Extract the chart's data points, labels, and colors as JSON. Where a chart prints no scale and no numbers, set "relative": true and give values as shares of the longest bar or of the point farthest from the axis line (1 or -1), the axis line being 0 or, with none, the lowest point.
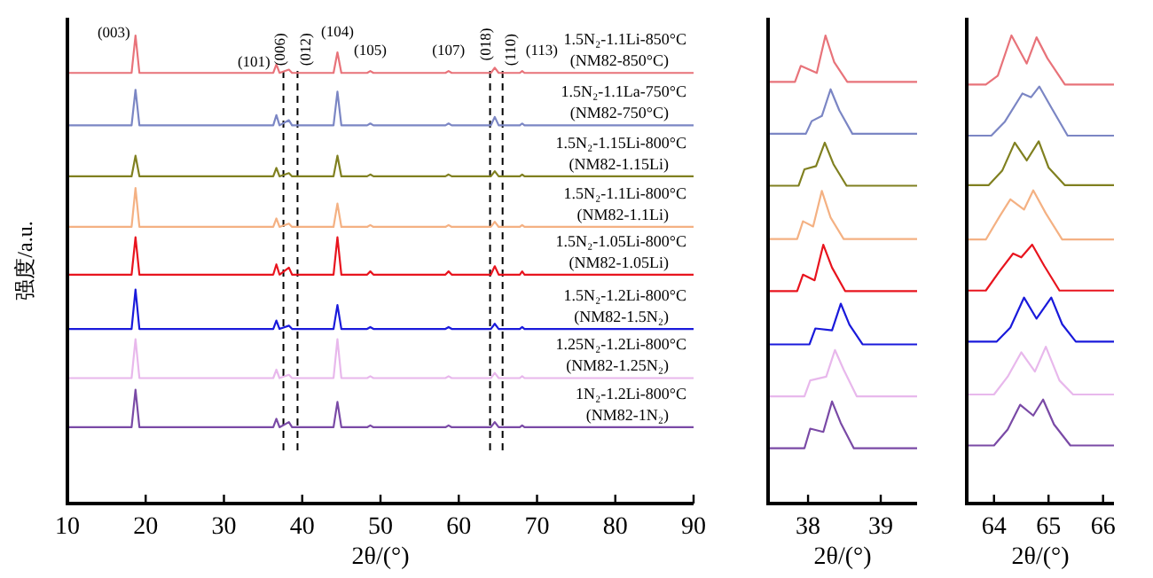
{
  "chart_data": [
    {
      "type": "line",
      "relative": true,
      "xlabel": "2θ/(°)",
      "ylabel": "强度/a.u.",
      "xlim": [
        10,
        90
      ],
      "xticks": [
        10,
        20,
        30,
        40,
        50,
        60,
        70,
        80,
        90
      ],
      "x": [
        10,
        18.2,
        18.7,
        19.2,
        36.3,
        36.7,
        37.1,
        38.3,
        38.7,
        44.0,
        44.5,
        45.0,
        48.3,
        48.7,
        49.1,
        58.3,
        58.7,
        59.1,
        64.1,
        64.6,
        65.1,
        67.8,
        68.1,
        68.4,
        90
      ],
      "series": [
        {
          "name": "1.5N₂-1.1Li-850°C (NM82-850°C)",
          "color": "#e8737a",
          "values": [
            0.92,
            0.92,
            1.0,
            0.92,
            0.92,
            0.938,
            0.92,
            0.927,
            0.92,
            0.92,
            0.964,
            0.92,
            0.92,
            0.924,
            0.92,
            0.92,
            0.924,
            0.92,
            0.92,
            0.931,
            0.92,
            0.92,
            0.924,
            0.92,
            0.92
          ]
        },
        {
          "name": "1.5N₂-1.1La-750°C (NM82-750°C)",
          "color": "#7b86c4",
          "values": [
            0.808,
            0.808,
            0.884,
            0.808,
            0.808,
            0.83,
            0.808,
            0.819,
            0.808,
            0.808,
            0.88,
            0.808,
            0.808,
            0.812,
            0.808,
            0.808,
            0.812,
            0.808,
            0.808,
            0.826,
            0.808,
            0.808,
            0.812,
            0.808,
            0.808
          ]
        },
        {
          "name": "1.5N₂-1.15Li-800°C (NM82-1.15Li)",
          "color": "#808020",
          "values": [
            0.699,
            0.699,
            0.743,
            0.699,
            0.699,
            0.717,
            0.699,
            0.706,
            0.699,
            0.699,
            0.743,
            0.699,
            0.699,
            0.703,
            0.699,
            0.699,
            0.703,
            0.699,
            0.699,
            0.71,
            0.699,
            0.699,
            0.703,
            0.699,
            0.699
          ]
        },
        {
          "name": "1.5N₂-1.1Li-800°C (NM82-1.1Li)",
          "color": "#f4b183",
          "values": [
            0.591,
            0.591,
            0.674,
            0.591,
            0.591,
            0.609,
            0.591,
            0.598,
            0.591,
            0.591,
            0.641,
            0.591,
            0.591,
            0.595,
            0.591,
            0.591,
            0.595,
            0.591,
            0.591,
            0.602,
            0.591,
            0.591,
            0.595,
            0.591,
            0.591
          ]
        },
        {
          "name": "1.5N₂-1.05Li-800°C (NM82-1.05Li)",
          "color": "#e8141e",
          "values": [
            0.489,
            0.489,
            0.569,
            0.489,
            0.489,
            0.511,
            0.489,
            0.504,
            0.489,
            0.489,
            0.569,
            0.489,
            0.489,
            0.496,
            0.489,
            0.489,
            0.496,
            0.489,
            0.489,
            0.507,
            0.489,
            0.489,
            0.496,
            0.489,
            0.489
          ]
        },
        {
          "name": "1.5N₂-1.2Li-800°C (NM82-1.5N₂)",
          "color": "#1a1adb",
          "values": [
            0.373,
            0.373,
            0.457,
            0.373,
            0.373,
            0.391,
            0.373,
            0.38,
            0.373,
            0.373,
            0.424,
            0.373,
            0.373,
            0.377,
            0.373,
            0.373,
            0.377,
            0.373,
            0.373,
            0.384,
            0.373,
            0.373,
            0.377,
            0.373,
            0.373
          ]
        },
        {
          "name": "1.25N₂-1.2Li-800°C (NM82-1.25N₂)",
          "color": "#e8b8ec",
          "values": [
            0.268,
            0.268,
            0.351,
            0.268,
            0.268,
            0.286,
            0.268,
            0.275,
            0.268,
            0.268,
            0.351,
            0.268,
            0.268,
            0.272,
            0.268,
            0.268,
            0.272,
            0.268,
            0.268,
            0.279,
            0.268,
            0.268,
            0.272,
            0.268,
            0.268
          ]
        },
        {
          "name": "1N₂-1.2Li-800°C (NM82-1N₂)",
          "color": "#7a4aa6",
          "values": [
            0.163,
            0.163,
            0.243,
            0.163,
            0.163,
            0.181,
            0.163,
            0.174,
            0.163,
            0.163,
            0.217,
            0.163,
            0.163,
            0.167,
            0.163,
            0.163,
            0.167,
            0.163,
            0.163,
            0.174,
            0.163,
            0.163,
            0.167,
            0.163,
            0.163
          ]
        }
      ],
      "annotations": [
        {
          "text": "(003)",
          "x": 18.7,
          "y": 1.0
        },
        {
          "text": "(101)",
          "x": 36.6,
          "y": 0.938
        },
        {
          "text": "(006)",
          "x": 38.0,
          "y": 0.92
        },
        {
          "text": "(012)",
          "x": 39.2,
          "y": 0.92
        },
        {
          "text": "(104)",
          "x": 44.5,
          "y": 0.964
        },
        {
          "text": "(105)",
          "x": 48.7,
          "y": 0.924
        },
        {
          "text": "(107)",
          "x": 58.7,
          "y": 0.924
        },
        {
          "text": "(018)",
          "x": 64.3,
          "y": 0.931
        },
        {
          "text": "(110)",
          "x": 65.4,
          "y": 0.92
        },
        {
          "text": "(113)",
          "x": 68.1,
          "y": 0.924
        }
      ],
      "ref_lines": [
        {
          "axis": "x",
          "value": 37.6,
          "color": "#000000",
          "line_style": "dashed"
        },
        {
          "axis": "x",
          "value": 39.4,
          "color": "#000000",
          "line_style": "dashed"
        },
        {
          "axis": "x",
          "value": 64.0,
          "color": "#000000",
          "line_style": "dashed"
        },
        {
          "axis": "x",
          "value": 65.6,
          "color": "#000000",
          "line_style": "dashed"
        }
      ]
    },
    {
      "type": "line",
      "relative": true,
      "xlabel": "2θ/(°)",
      "xlim": [
        37.45,
        39.5
      ],
      "xticks": [
        38,
        39
      ],
      "series": [
        {
          "color": "#e8737a",
          "x": [
            37.45,
            37.82,
            37.9,
            38.12,
            38.24,
            38.36,
            38.54,
            39.5
          ],
          "values": [
            0.901,
            0.901,
            0.935,
            0.92,
            1.0,
            0.943,
            0.901,
            0.901
          ]
        },
        {
          "color": "#7b86c4",
          "x": [
            37.45,
            37.97,
            38.05,
            38.19,
            38.31,
            38.43,
            38.61,
            39.5
          ],
          "values": [
            0.79,
            0.79,
            0.817,
            0.828,
            0.885,
            0.84,
            0.79,
            0.79
          ]
        },
        {
          "color": "#808020",
          "x": [
            37.45,
            37.87,
            37.95,
            38.11,
            38.23,
            38.35,
            38.53,
            39.5
          ],
          "values": [
            0.679,
            0.679,
            0.714,
            0.721,
            0.771,
            0.725,
            0.679,
            0.679
          ]
        },
        {
          "color": "#f4b183",
          "x": [
            37.45,
            37.85,
            37.93,
            38.07,
            38.19,
            38.31,
            38.49,
            39.5
          ],
          "values": [
            0.565,
            0.565,
            0.603,
            0.592,
            0.668,
            0.611,
            0.565,
            0.565
          ]
        },
        {
          "color": "#e8141e",
          "x": [
            37.45,
            37.85,
            37.93,
            38.09,
            38.21,
            38.33,
            38.51,
            39.5
          ],
          "values": [
            0.454,
            0.454,
            0.489,
            0.477,
            0.553,
            0.504,
            0.454,
            0.454
          ]
        },
        {
          "color": "#1a1adb",
          "x": [
            37.45,
            38.02,
            38.1,
            38.33,
            38.45,
            38.57,
            38.75,
            39.5
          ],
          "values": [
            0.34,
            0.34,
            0.374,
            0.37,
            0.427,
            0.382,
            0.34,
            0.34
          ]
        },
        {
          "color": "#e8b8ec",
          "x": [
            37.45,
            37.95,
            38.03,
            38.25,
            38.37,
            38.49,
            38.67,
            39.5
          ],
          "values": [
            0.229,
            0.229,
            0.263,
            0.271,
            0.328,
            0.286,
            0.229,
            0.229
          ]
        },
        {
          "color": "#7a4aa6",
          "x": [
            37.45,
            37.95,
            38.03,
            38.21,
            38.33,
            38.45,
            38.63,
            39.5
          ],
          "values": [
            0.118,
            0.118,
            0.16,
            0.153,
            0.218,
            0.172,
            0.118,
            0.118
          ]
        }
      ]
    },
    {
      "type": "line",
      "relative": true,
      "xlabel": "2θ/(°)",
      "xlim": [
        63.5,
        66.2
      ],
      "xticks": [
        64,
        65,
        66
      ],
      "series": [
        {
          "color": "#e8737a",
          "x": [
            63.5,
            63.85,
            64.07,
            64.32,
            64.6,
            64.78,
            64.98,
            65.3,
            66.2
          ],
          "values": [
            0.895,
            0.895,
            0.914,
            1.0,
            0.94,
            0.996,
            0.951,
            0.895,
            0.895
          ]
        },
        {
          "color": "#7b86c4",
          "x": [
            63.5,
            63.95,
            64.2,
            64.52,
            64.68,
            64.83,
            65.05,
            65.35,
            66.2
          ],
          "values": [
            0.786,
            0.786,
            0.816,
            0.876,
            0.868,
            0.891,
            0.846,
            0.786,
            0.786
          ]
        },
        {
          "color": "#808020",
          "x": [
            63.5,
            63.9,
            64.15,
            64.38,
            64.6,
            64.82,
            65.0,
            65.3,
            66.2
          ],
          "values": [
            0.68,
            0.68,
            0.711,
            0.771,
            0.733,
            0.774,
            0.718,
            0.68,
            0.68
          ]
        },
        {
          "color": "#f4b183",
          "x": [
            63.5,
            63.85,
            64.1,
            64.3,
            64.55,
            64.72,
            64.95,
            65.25,
            66.2
          ],
          "values": [
            0.564,
            0.564,
            0.613,
            0.65,
            0.628,
            0.669,
            0.62,
            0.564,
            0.564
          ]
        },
        {
          "color": "#e8141e",
          "x": [
            63.5,
            63.85,
            64.1,
            64.35,
            64.5,
            64.7,
            64.92,
            65.2,
            66.2
          ],
          "values": [
            0.455,
            0.455,
            0.496,
            0.534,
            0.526,
            0.553,
            0.508,
            0.455,
            0.455
          ]
        },
        {
          "color": "#1a1adb",
          "x": [
            63.5,
            64.05,
            64.3,
            64.55,
            64.78,
            65.05,
            65.25,
            65.5,
            66.2
          ],
          "values": [
            0.346,
            0.346,
            0.376,
            0.44,
            0.395,
            0.44,
            0.383,
            0.346,
            0.346
          ]
        },
        {
          "color": "#e8b8ec",
          "x": [
            63.5,
            64.0,
            64.25,
            64.5,
            64.75,
            64.95,
            65.2,
            65.45,
            66.2
          ],
          "values": [
            0.233,
            0.233,
            0.271,
            0.323,
            0.282,
            0.335,
            0.263,
            0.233,
            0.233
          ]
        },
        {
          "color": "#7a4aa6",
          "x": [
            63.5,
            64.0,
            64.25,
            64.48,
            64.72,
            64.9,
            65.1,
            65.4,
            66.2
          ],
          "values": [
            0.124,
            0.124,
            0.158,
            0.211,
            0.188,
            0.222,
            0.169,
            0.124,
            0.124
          ]
        }
      ]
    }
  ]
}
